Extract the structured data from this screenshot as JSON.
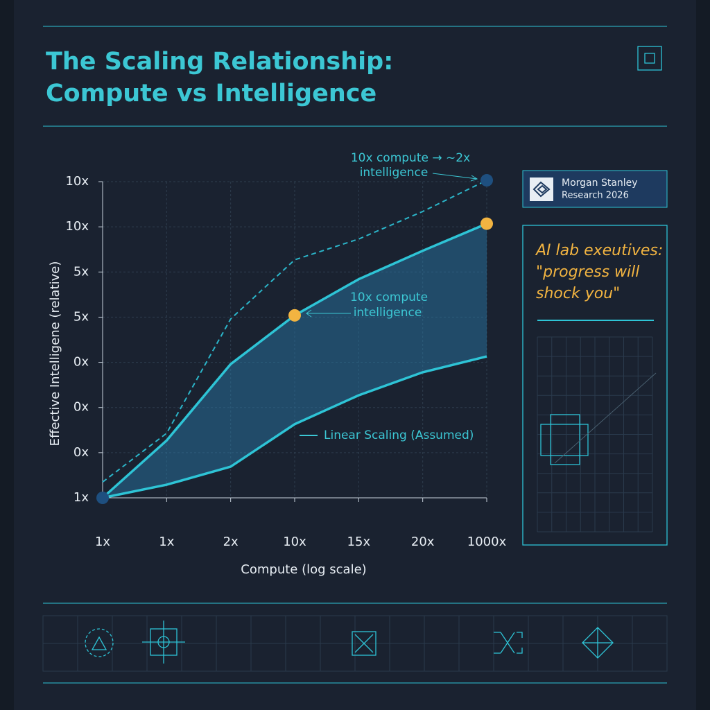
{
  "title_lines": [
    "The Scaling Relationship:",
    "Compute vs Intelligence"
  ],
  "badge": {
    "lines": [
      "Morgan Stanley",
      "Research 2026"
    ]
  },
  "quote": {
    "lines": [
      "AI lab exeutives:",
      "\"progress will",
      "shock you\""
    ]
  },
  "chart_data": {
    "type": "line",
    "x_label": "Compute (log scale)",
    "y_label": "Effective Intelligene (relative)",
    "categories": [
      "1x",
      "1x",
      "2x",
      "10x",
      "15x",
      "20x",
      "1000x"
    ],
    "ycategories": [
      "1x",
      "0x",
      "0x",
      "0x",
      "5x",
      "5x",
      "10x",
      "10x"
    ],
    "ylim": [
      0,
      7
    ],
    "grid": true,
    "fill_between": [
      1,
      2
    ],
    "fill_color": "#2a7fb0",
    "series": [
      {
        "color": "#2bb5c9",
        "dashed": true,
        "values": [
          0.35,
          1.43,
          3.96,
          5.27,
          5.73,
          6.34,
          7.03
        ],
        "markers": [
          6
        ],
        "marker_color": "#1e4f7f"
      },
      {
        "color": "#2ec4d6",
        "values": [
          0,
          1.27,
          2.96,
          4.04,
          4.84,
          5.47,
          6.07
        ],
        "markers": [
          3,
          6
        ],
        "marker_color": "#f2b441"
      },
      {
        "name": "Linear Scaling (Assumed)",
        "color": "#2ec4d6",
        "values": [
          0,
          0.29,
          0.69,
          1.63,
          2.27,
          2.78,
          3.13
        ],
        "markers": [
          0
        ],
        "marker_color": "#1e4f7f"
      }
    ],
    "annotations": [
      {
        "lines": [
          "10x compute → ~2x",
          "intelligence"
        ]
      },
      {
        "lines": [
          "10x compute",
          "intelligence"
        ]
      }
    ]
  }
}
